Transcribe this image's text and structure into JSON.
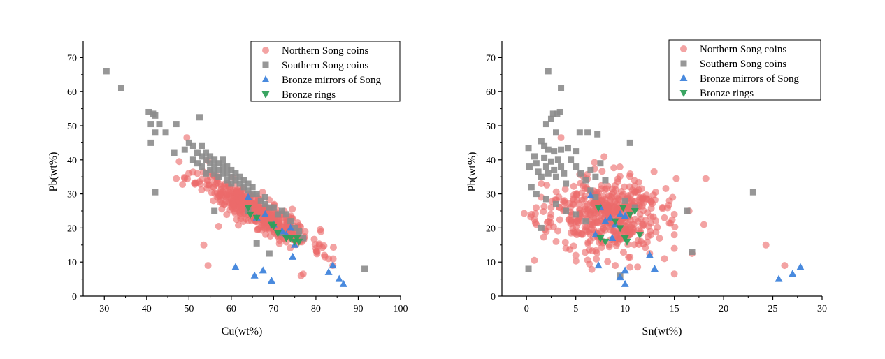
{
  "chart_data": [
    {
      "type": "scatter",
      "xlabel": "Cu(wt%)",
      "ylabel": "Pb(wt%)",
      "xlim": [
        25,
        100
      ],
      "ylim": [
        0,
        75
      ],
      "xticks": [
        30,
        40,
        50,
        60,
        70,
        80,
        90,
        100
      ],
      "yticks": [
        0,
        10,
        20,
        30,
        40,
        50,
        60,
        70
      ],
      "legend_position": "top-right",
      "series": [
        {
          "name": "Northern Song coins",
          "marker": "circle",
          "color": "#ec6a6a",
          "cluster": {
            "cx": 66,
            "cy": 25,
            "sx": 6.5,
            "sy": 5,
            "rho": -0.88,
            "n": 480,
            "seed": 11
          },
          "points": [
            [
              49.5,
              46.5
            ],
            [
              47,
              34.5
            ],
            [
              49,
              34.5
            ],
            [
              54.5,
              9
            ],
            [
              53.5,
              15
            ],
            [
              76.5,
              6
            ],
            [
              77,
              6.5
            ],
            [
              82,
              12
            ],
            [
              83,
              11
            ],
            [
              84,
              9
            ],
            [
              80,
              14
            ],
            [
              57,
              20.5
            ],
            [
              52,
              36
            ],
            [
              54,
              36
            ],
            [
              55,
              35
            ]
          ]
        },
        {
          "name": "Southern Song coins",
          "marker": "square",
          "color": "#8c8c8c",
          "points": [
            [
              30.5,
              66
            ],
            [
              34,
              61
            ],
            [
              40.5,
              54
            ],
            [
              41.5,
              53.5
            ],
            [
              42,
              53
            ],
            [
              41,
              50.5
            ],
            [
              43,
              50.5
            ],
            [
              41,
              45
            ],
            [
              42,
              48
            ],
            [
              44.5,
              48
            ],
            [
              46.5,
              42
            ],
            [
              47,
              50.5
            ],
            [
              52.5,
              52.5
            ],
            [
              42,
              30.5
            ],
            [
              91.5,
              8
            ],
            [
              49,
              43
            ],
            [
              50,
              45
            ],
            [
              51,
              44
            ],
            [
              51,
              40
            ],
            [
              52,
              42
            ],
            [
              52,
              39
            ],
            [
              53,
              44
            ],
            [
              53,
              41
            ],
            [
              53,
              38
            ],
            [
              54,
              42
            ],
            [
              54,
              40
            ],
            [
              54,
              36
            ],
            [
              55,
              41
            ],
            [
              55,
              39
            ],
            [
              55,
              37
            ],
            [
              56,
              40
            ],
            [
              56,
              38
            ],
            [
              56,
              36
            ],
            [
              57,
              39
            ],
            [
              57,
              37
            ],
            [
              57,
              35
            ],
            [
              58,
              40
            ],
            [
              58,
              38
            ],
            [
              58,
              36
            ],
            [
              59,
              38
            ],
            [
              59,
              36
            ],
            [
              59,
              34
            ],
            [
              60,
              37
            ],
            [
              60,
              35
            ],
            [
              60,
              33
            ],
            [
              61,
              36
            ],
            [
              61,
              34
            ],
            [
              62,
              35
            ],
            [
              62,
              33
            ],
            [
              63,
              34
            ],
            [
              63,
              32
            ],
            [
              64,
              33
            ],
            [
              64,
              31
            ],
            [
              65,
              32
            ],
            [
              65,
              30
            ],
            [
              66,
              30
            ],
            [
              67,
              28
            ],
            [
              68,
              29
            ],
            [
              68,
              27
            ],
            [
              69,
              26
            ],
            [
              70,
              26
            ],
            [
              71,
              24
            ],
            [
              72,
              25
            ],
            [
              73,
              24
            ],
            [
              74,
              22
            ],
            [
              75,
              20
            ],
            [
              76,
              19
            ],
            [
              77,
              17
            ],
            [
              69,
              12.5
            ],
            [
              66,
              15.5
            ],
            [
              64,
              25
            ],
            [
              72,
              18.5
            ],
            [
              56,
              25
            ]
          ]
        },
        {
          "name": "Bronze mirrors of Song",
          "marker": "triangle-up",
          "color": "#3f84dc",
          "points": [
            [
              61,
              8.5
            ],
            [
              65.5,
              6
            ],
            [
              67.5,
              7.5
            ],
            [
              69.5,
              4.5
            ],
            [
              83,
              7
            ],
            [
              84,
              9
            ],
            [
              85.5,
              5
            ],
            [
              86.5,
              3.5
            ],
            [
              64,
              29
            ],
            [
              66,
              23
            ],
            [
              68,
              24
            ],
            [
              70,
              21
            ],
            [
              72,
              19
            ],
            [
              73,
              18
            ],
            [
              74,
              20
            ],
            [
              74.5,
              11.5
            ],
            [
              75,
              15
            ]
          ]
        },
        {
          "name": "Bronze rings",
          "marker": "triangle-down",
          "color": "#2fa05a",
          "points": [
            [
              64,
              26
            ],
            [
              64.5,
              24
            ],
            [
              66,
              23
            ],
            [
              69.5,
              21
            ],
            [
              70,
              20.5
            ],
            [
              71,
              18.5
            ],
            [
              73,
              17
            ],
            [
              74,
              17
            ],
            [
              75,
              16
            ],
            [
              75.5,
              17
            ],
            [
              76,
              16
            ]
          ]
        }
      ]
    },
    {
      "type": "scatter",
      "xlabel": "Sn(wt%)",
      "ylabel": "Pb(wt%)",
      "xlim": [
        -2.5,
        30
      ],
      "ylim": [
        0,
        75
      ],
      "xticks": [
        0,
        5,
        10,
        15,
        20,
        25,
        30
      ],
      "yticks": [
        0,
        10,
        20,
        30,
        40,
        50,
        60,
        70
      ],
      "legend_position": "top-right",
      "series": [
        {
          "name": "Northern Song coins",
          "marker": "circle",
          "color": "#ec6a6a",
          "cluster": {
            "cx": 8,
            "cy": 24,
            "sx": 2.8,
            "sy": 5.5,
            "rho": -0.05,
            "n": 480,
            "seed": 23
          },
          "points": [
            [
              3.5,
              46.5
            ],
            [
              1.5,
              33
            ],
            [
              0.5,
              24
            ],
            [
              0.8,
              22.5
            ],
            [
              1,
              21
            ],
            [
              0.8,
              10.5
            ],
            [
              24.3,
              15
            ],
            [
              26.2,
              9
            ],
            [
              18.2,
              34.5
            ],
            [
              18,
              21
            ],
            [
              15.2,
              34.5
            ],
            [
              16.8,
              12.5
            ],
            [
              14.5,
              28
            ],
            [
              15,
              24
            ],
            [
              15,
              18
            ],
            [
              15,
              14
            ],
            [
              14,
              23
            ],
            [
              13.5,
              17
            ],
            [
              14,
              11
            ],
            [
              15,
              6.5
            ],
            [
              9,
              9
            ],
            [
              10.5,
              8.5
            ],
            [
              16.5,
              25
            ],
            [
              12.5,
              12.5
            ],
            [
              2,
              19
            ],
            [
              3,
              16
            ],
            [
              4,
              14
            ],
            [
              5,
              12
            ],
            [
              1.5,
              29
            ],
            [
              2.5,
              26
            ]
          ]
        },
        {
          "name": "Southern Song coins",
          "marker": "square",
          "color": "#8c8c8c",
          "points": [
            [
              2.2,
              66
            ],
            [
              3.5,
              61
            ],
            [
              2.7,
              53.5
            ],
            [
              3.1,
              53.5
            ],
            [
              3.4,
              54
            ],
            [
              2.5,
              52
            ],
            [
              2,
              50.5
            ],
            [
              3,
              48
            ],
            [
              5.4,
              48
            ],
            [
              6.2,
              48
            ],
            [
              7.2,
              47.5
            ],
            [
              10.5,
              45
            ],
            [
              0.2,
              43.5
            ],
            [
              1.5,
              45.5
            ],
            [
              1.8,
              44
            ],
            [
              2.2,
              43
            ],
            [
              2.8,
              42.5
            ],
            [
              3.5,
              43
            ],
            [
              4.2,
              43.5
            ],
            [
              5,
              42.5
            ],
            [
              0.3,
              38
            ],
            [
              0.8,
              41
            ],
            [
              1,
              39
            ],
            [
              1.2,
              36.5
            ],
            [
              1.5,
              35
            ],
            [
              1.8,
              40.5
            ],
            [
              2,
              38
            ],
            [
              2.2,
              36
            ],
            [
              2.5,
              39.5
            ],
            [
              2.8,
              37
            ],
            [
              3,
              35
            ],
            [
              3.2,
              40
            ],
            [
              3.5,
              38
            ],
            [
              3.8,
              36
            ],
            [
              4,
              33
            ],
            [
              4.5,
              40
            ],
            [
              5,
              38
            ],
            [
              5.5,
              36
            ],
            [
              6,
              34
            ],
            [
              6.5,
              37
            ],
            [
              7,
              35
            ],
            [
              7.5,
              39
            ],
            [
              8,
              34
            ],
            [
              0.5,
              32
            ],
            [
              1,
              30
            ],
            [
              2,
              28.5
            ],
            [
              3,
              27
            ],
            [
              4,
              25
            ],
            [
              5,
              24
            ],
            [
              6,
              22
            ],
            [
              23,
              30.5
            ],
            [
              16.3,
              25
            ],
            [
              16.8,
              13
            ],
            [
              0.2,
              8
            ],
            [
              1.5,
              20
            ],
            [
              10,
              28
            ],
            [
              11,
              26
            ],
            [
              9.5,
              6
            ],
            [
              6.5,
              31
            ],
            [
              7,
              29
            ]
          ]
        },
        {
          "name": "Bronze mirrors of Song",
          "marker": "triangle-up",
          "color": "#3f84dc",
          "points": [
            [
              7.3,
              9
            ],
            [
              9.5,
              5.5
            ],
            [
              10,
              7.5
            ],
            [
              10,
              3.5
            ],
            [
              12.5,
              12
            ],
            [
              13,
              8
            ],
            [
              25.6,
              5
            ],
            [
              27,
              6.5
            ],
            [
              27.8,
              8.5
            ],
            [
              6.5,
              29.5
            ],
            [
              7.5,
              26
            ],
            [
              8,
              22
            ],
            [
              8.5,
              23
            ],
            [
              9,
              21
            ],
            [
              9.5,
              24
            ],
            [
              7,
              18
            ],
            [
              8.7,
              17
            ],
            [
              10,
              23.5
            ]
          ]
        },
        {
          "name": "Bronze rings",
          "marker": "triangle-down",
          "color": "#2fa05a",
          "points": [
            [
              7.3,
              26
            ],
            [
              7.5,
              17
            ],
            [
              8,
              16
            ],
            [
              9,
              22
            ],
            [
              9.5,
              20
            ],
            [
              9.8,
              26
            ],
            [
              10,
              17
            ],
            [
              10.2,
              16
            ],
            [
              10.5,
              24
            ],
            [
              11,
              25
            ],
            [
              11.5,
              18
            ]
          ]
        }
      ]
    }
  ]
}
